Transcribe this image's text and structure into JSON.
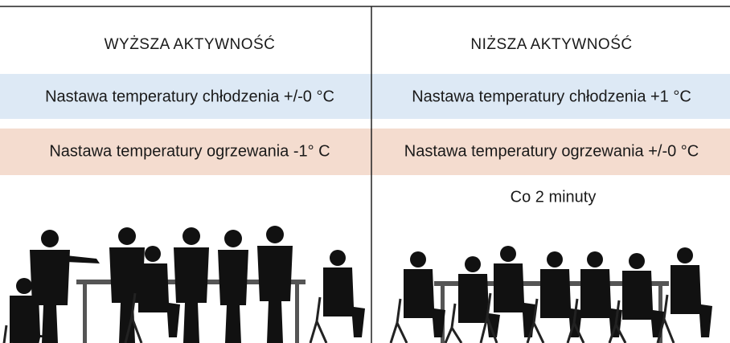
{
  "left": {
    "header": "WYŻSZA AKTYWNOŚĆ",
    "cooling": "Nastawa temperatury chłodzenia +/-0 °C",
    "heating": "Nastawa temperatury ogrzewania -1° C"
  },
  "right": {
    "header": "NIŻSZA AKTYWNOŚĆ",
    "cooling": "Nastawa temperatury chłodzenia +1 °C",
    "heating": "Nastawa temperatury ogrzewania +/-0 °C",
    "note": "Co 2 minuty"
  }
}
